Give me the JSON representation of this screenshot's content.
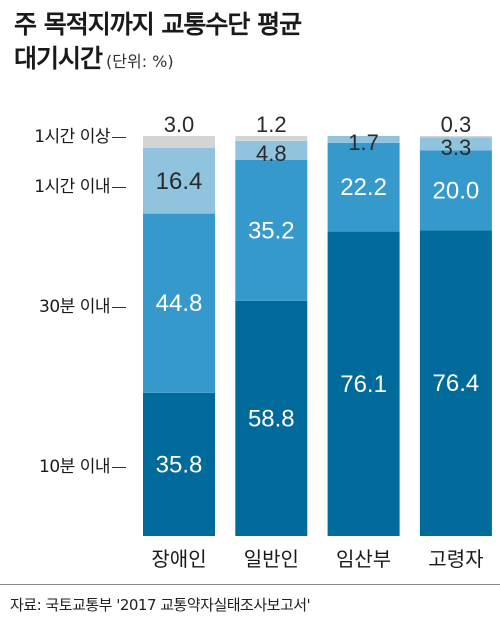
{
  "header": {
    "title_line1": "주 목적지까지 교통수단 평균",
    "title_line2": "대기시간",
    "unit": "(단위: %)"
  },
  "colors": {
    "10분 이내": "#006b9b",
    "30분 이내": "#3599cb",
    "1시간 이내": "#8fc3de",
    "1시간 이상": "#d2d4d6"
  },
  "chart_data": {
    "type": "bar",
    "stacked": true,
    "title": "주 목적지까지 교통수단 평균 대기시간",
    "unit": "%",
    "categories": [
      "장애인",
      "일반인",
      "임산부",
      "고령자"
    ],
    "series": [
      {
        "name": "10분 이내",
        "values": [
          35.8,
          58.8,
          76.1,
          76.4
        ]
      },
      {
        "name": "30분 이내",
        "values": [
          44.8,
          35.2,
          22.2,
          20.0
        ]
      },
      {
        "name": "1시간 이내",
        "values": [
          16.4,
          4.8,
          1.7,
          3.3
        ]
      },
      {
        "name": "1시간 이상",
        "values": [
          3.0,
          1.2,
          0.0,
          0.3
        ]
      }
    ],
    "labels": [
      [
        "35.8",
        "58.8",
        "76.1",
        "76.4"
      ],
      [
        "44.8",
        "35.2",
        "22.2",
        "20.0"
      ],
      [
        "16.4",
        "4.8",
        "1.7",
        "3.3"
      ],
      [
        "3.0",
        "1.2",
        "",
        "0.3"
      ]
    ],
    "ylim": [
      0,
      100
    ],
    "grid": false,
    "legend": "left"
  },
  "source": "자료: 국토교통부 '2017 교통약자실태조사보고서'"
}
